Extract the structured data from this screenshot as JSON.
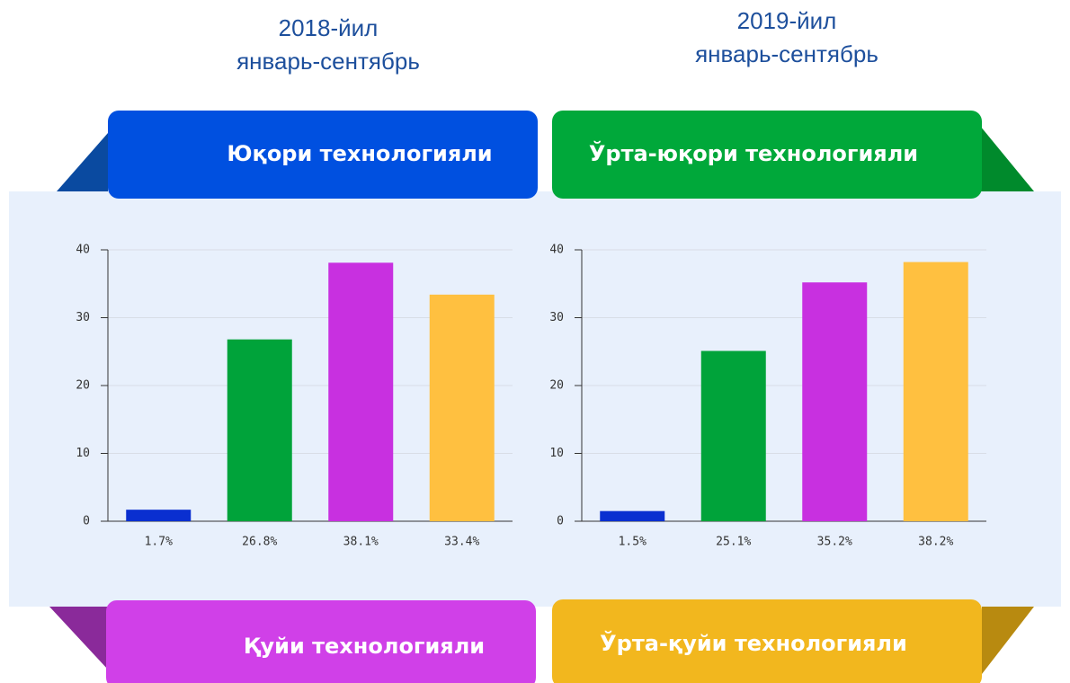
{
  "legend": [
    {
      "name": "Юқори технологияли",
      "color": "#0050e0"
    },
    {
      "name": "Ўрта-юқори технологияли",
      "color": "#00a83a"
    },
    {
      "name": "Қуйи технологияли",
      "color": "#d040e8"
    },
    {
      "name": "Ўрта-қуйи технологияли",
      "color": "#f2b71e"
    }
  ],
  "chart_data": [
    {
      "type": "bar",
      "title": "2018-йил",
      "subtitle": "январь-сентябрь",
      "values": [
        1.7,
        26.8,
        38.1,
        33.4
      ],
      "value_labels": [
        "1.7%",
        "26.8%",
        "38.1%",
        "33.4%"
      ],
      "colors": [
        "#0a2fd0",
        "#00a33a",
        "#c830e0",
        "#ffc040"
      ],
      "ylim": [
        0,
        40
      ],
      "yticks": [
        0,
        10,
        20,
        30,
        40
      ],
      "grid": true
    },
    {
      "type": "bar",
      "title": "2019-йил",
      "subtitle": "январь-сентябрь",
      "values": [
        1.5,
        25.1,
        35.2,
        38.2
      ],
      "value_labels": [
        "1.5%",
        "25.1%",
        "35.2%",
        "38.2%"
      ],
      "colors": [
        "#0a2fd0",
        "#00a33a",
        "#c830e0",
        "#ffc040"
      ],
      "ylim": [
        0,
        40
      ],
      "yticks": [
        0,
        10,
        20,
        30,
        40
      ],
      "grid": true
    }
  ]
}
